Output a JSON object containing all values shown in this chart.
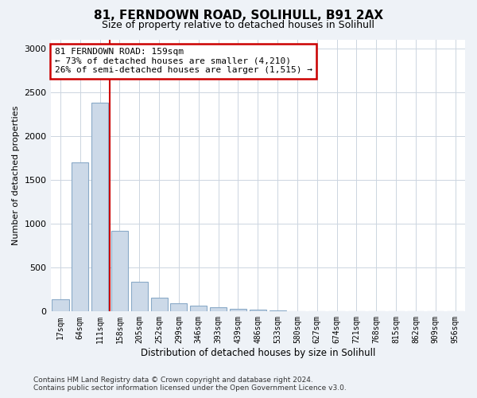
{
  "title1": "81, FERNDOWN ROAD, SOLIHULL, B91 2AX",
  "title2": "Size of property relative to detached houses in Solihull",
  "xlabel": "Distribution of detached houses by size in Solihull",
  "ylabel": "Number of detached properties",
  "bar_labels": [
    "17sqm",
    "64sqm",
    "111sqm",
    "158sqm",
    "205sqm",
    "252sqm",
    "299sqm",
    "346sqm",
    "393sqm",
    "439sqm",
    "486sqm",
    "533sqm",
    "580sqm",
    "627sqm",
    "674sqm",
    "721sqm",
    "768sqm",
    "815sqm",
    "862sqm",
    "909sqm",
    "956sqm"
  ],
  "bar_values": [
    140,
    1700,
    2380,
    920,
    340,
    160,
    95,
    70,
    50,
    30,
    25,
    10,
    5,
    5,
    5,
    0,
    0,
    0,
    0,
    0,
    0
  ],
  "bar_color": "#ccd9e8",
  "bar_edge_color": "#8aaac8",
  "vline_color": "#cc0000",
  "annotation_text": "81 FERNDOWN ROAD: 159sqm\n← 73% of detached houses are smaller (4,210)\n26% of semi-detached houses are larger (1,515) →",
  "annotation_box_color": "#cc0000",
  "ylim": [
    0,
    3100
  ],
  "yticks": [
    0,
    500,
    1000,
    1500,
    2000,
    2500,
    3000
  ],
  "footer_line1": "Contains HM Land Registry data © Crown copyright and database right 2024.",
  "footer_line2": "Contains public sector information licensed under the Open Government Licence v3.0.",
  "bg_color": "#eef2f7",
  "plot_bg_color": "#ffffff",
  "grid_color": "#ccd5e0"
}
